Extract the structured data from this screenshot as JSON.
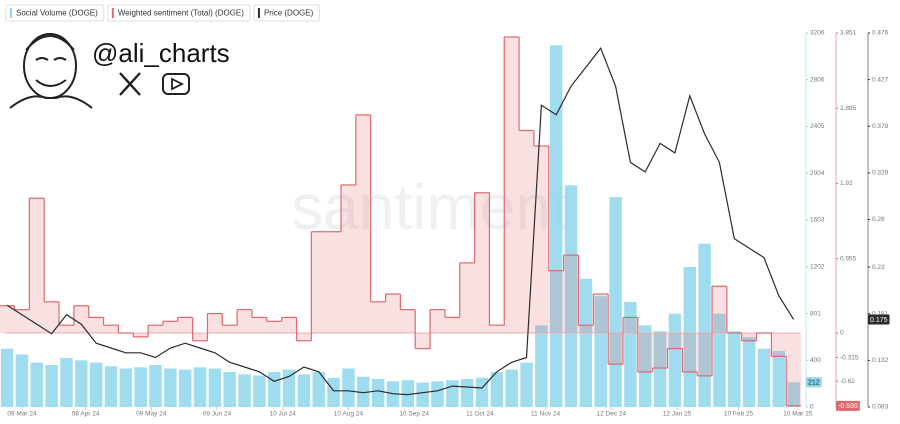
{
  "chart_data": {
    "type": "combo",
    "branding": {
      "handle": "@ali_charts",
      "watermark": "santiment"
    },
    "x": [
      "2024-03-02",
      "2024-03-09",
      "2024-03-16",
      "2024-03-23",
      "2024-03-30",
      "2024-04-06",
      "2024-04-13",
      "2024-04-20",
      "2024-04-27",
      "2024-05-04",
      "2024-05-11",
      "2024-05-18",
      "2024-05-25",
      "2024-06-01",
      "2024-06-08",
      "2024-06-15",
      "2024-06-22",
      "2024-06-29",
      "2024-07-06",
      "2024-07-13",
      "2024-07-20",
      "2024-07-27",
      "2024-08-03",
      "2024-08-10",
      "2024-08-17",
      "2024-08-24",
      "2024-08-31",
      "2024-09-07",
      "2024-09-14",
      "2024-09-21",
      "2024-09-28",
      "2024-10-05",
      "2024-10-12",
      "2024-10-19",
      "2024-10-26",
      "2024-11-02",
      "2024-11-09",
      "2024-11-16",
      "2024-11-23",
      "2024-11-30",
      "2024-12-07",
      "2024-12-14",
      "2024-12-21",
      "2024-12-28",
      "2025-01-04",
      "2025-01-11",
      "2025-01-18",
      "2025-01-25",
      "2025-02-01",
      "2025-02-08",
      "2025-02-15",
      "2025-02-22",
      "2025-03-01",
      "2025-03-08"
    ],
    "xlim": [
      "2024-03-01",
      "2025-03-11"
    ],
    "xticks": [
      {
        "value": "2024-03-09",
        "label": "09 Mar 24"
      },
      {
        "value": "2024-04-08",
        "label": "08 Apr 24"
      },
      {
        "value": "2024-05-09",
        "label": "09 May 24"
      },
      {
        "value": "2024-06-09",
        "label": "09 Jun 24"
      },
      {
        "value": "2024-07-10",
        "label": "10 Jul 24"
      },
      {
        "value": "2024-08-10",
        "label": "10 Aug 24"
      },
      {
        "value": "2024-09-10",
        "label": "10 Sep 24"
      },
      {
        "value": "2024-10-11",
        "label": "11 Oct 24"
      },
      {
        "value": "2024-11-11",
        "label": "11 Nov 24"
      },
      {
        "value": "2024-12-12",
        "label": "12 Dec 24"
      },
      {
        "value": "2025-01-12",
        "label": "12 Jan 25"
      },
      {
        "value": "2025-02-10",
        "label": "10 Feb 25"
      },
      {
        "value": "2025-03-10",
        "label": "10 Mar 25"
      }
    ],
    "ylim": [
      0,
      3206
    ],
    "yticks": [
      0,
      400,
      801,
      1202,
      1603,
      2004,
      2405,
      2806,
      3206
    ],
    "y2lim": [
      -0.95,
      3.851
    ],
    "y2ticks": [
      -0.62,
      -0.315,
      0,
      0.955,
      1.92,
      2.885,
      3.851
    ],
    "y3lim": [
      0.083,
      0.476
    ],
    "y3ticks": [
      0.083,
      0.132,
      0.181,
      0.23,
      0.28,
      0.329,
      0.378,
      0.427,
      0.476
    ],
    "series": [
      {
        "name": "Social Volume (DOGE)",
        "kind": "bar",
        "axis": "y",
        "color": "#8fd6ec",
        "values": [
          500,
          450,
          380,
          360,
          420,
          400,
          380,
          350,
          330,
          340,
          360,
          330,
          320,
          340,
          330,
          300,
          280,
          270,
          300,
          320,
          280,
          300,
          250,
          330,
          260,
          240,
          220,
          230,
          210,
          220,
          230,
          240,
          250,
          300,
          320,
          380,
          700,
          3100,
          1900,
          1100,
          950,
          1800,
          900,
          700,
          650,
          800,
          1200,
          1400,
          800,
          650,
          600,
          500,
          480,
          212
        ]
      },
      {
        "name": "Weighted sentiment (Total) (DOGE)",
        "kind": "step-area",
        "axis": "y2",
        "color": "#e0686b",
        "values": [
          0.35,
          0.3,
          1.73,
          0.4,
          0.1,
          0.35,
          0.2,
          0.1,
          0.0,
          -0.05,
          0.1,
          0.15,
          0.2,
          -0.1,
          0.25,
          0.1,
          0.3,
          0.2,
          0.15,
          0.2,
          -0.1,
          1.3,
          1.3,
          1.9,
          2.8,
          0.4,
          0.5,
          0.3,
          -0.2,
          0.3,
          0.2,
          0.9,
          1.8,
          0.1,
          3.8,
          2.6,
          2.4,
          0.8,
          1.0,
          0.1,
          0.5,
          -0.4,
          0.2,
          -0.5,
          -0.45,
          -0.2,
          -0.5,
          -0.55,
          0.6,
          0.0,
          -0.1,
          0.0,
          -0.3,
          -0.935
        ]
      },
      {
        "name": "Price (DOGE)",
        "kind": "line",
        "axis": "y3",
        "color": "#2b2b2b",
        "values": [
          0.19,
          0.18,
          0.17,
          0.16,
          0.18,
          0.17,
          0.15,
          0.145,
          0.14,
          0.14,
          0.135,
          0.145,
          0.15,
          0.145,
          0.14,
          0.13,
          0.125,
          0.12,
          0.11,
          0.115,
          0.125,
          0.12,
          0.1,
          0.1,
          0.098,
          0.1,
          0.097,
          0.096,
          0.098,
          0.1,
          0.105,
          0.104,
          0.103,
          0.12,
          0.13,
          0.135,
          0.4,
          0.39,
          0.42,
          0.44,
          0.46,
          0.42,
          0.34,
          0.33,
          0.36,
          0.35,
          0.41,
          0.37,
          0.34,
          0.26,
          0.25,
          0.24,
          0.2,
          0.175
        ]
      }
    ]
  }
}
